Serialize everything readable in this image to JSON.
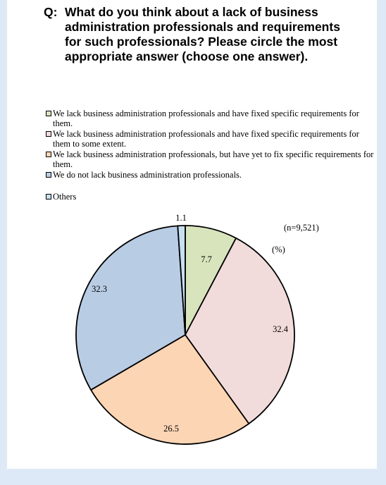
{
  "question": {
    "prefix": "Q:",
    "text": "What do you think about a lack of business administration professionals and requirements for such professionals? Please circle the most appropriate answer (choose one answer)."
  },
  "sample_note": "(n=9,521)",
  "unit_note": "(%)",
  "chart_data": {
    "type": "pie",
    "title": "",
    "categories": [
      "We lack business administration professionals and have fixed specific requirements for them.",
      "We lack business administration professionals and have fixed specific requirements for them to some extent.",
      "We lack business administration professionals, but have yet to fix specific requirements for them.",
      "We do not lack business administration professionals.",
      "Others"
    ],
    "values": [
      7.7,
      32.4,
      26.5,
      32.3,
      1.1
    ],
    "value_labels": [
      "7.7",
      "32.4",
      "26.5",
      "32.3",
      "1.1"
    ],
    "colors": [
      "#d8e4bc",
      "#f2dcdb",
      "#fcd5b4",
      "#b8cce4",
      "#c5e0f0"
    ],
    "start_angle_deg": 0,
    "direction": "clockwise",
    "legend_position": "top-left"
  }
}
